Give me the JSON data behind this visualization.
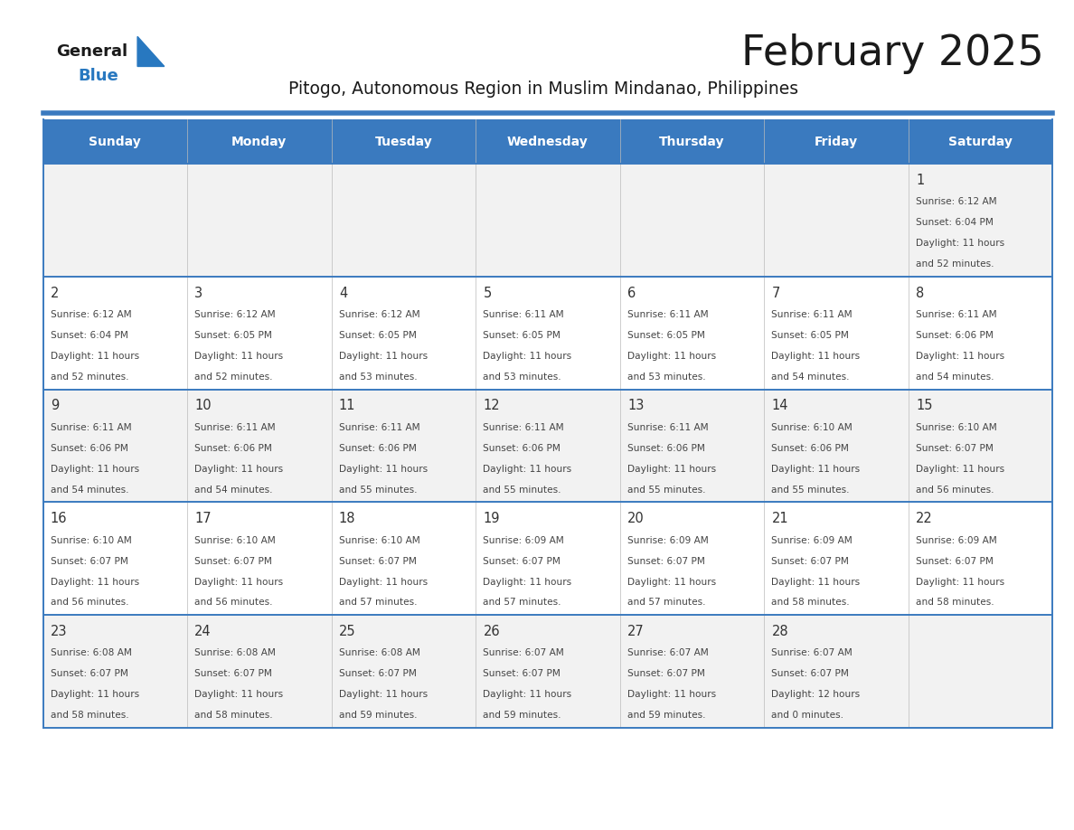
{
  "title": "February 2025",
  "subtitle": "Pitogo, Autonomous Region in Muslim Mindanao, Philippines",
  "days_of_week": [
    "Sunday",
    "Monday",
    "Tuesday",
    "Wednesday",
    "Thursday",
    "Friday",
    "Saturday"
  ],
  "header_bg_color": "#3a7abf",
  "header_text_color": "#ffffff",
  "cell_bg_even": "#f2f2f2",
  "cell_bg_white": "#ffffff",
  "separator_color": "#3a7abf",
  "day_number_color": "#333333",
  "info_text_color": "#444444",
  "title_color": "#1a1a1a",
  "subtitle_color": "#1a1a1a",
  "logo_general_color": "#1a1a1a",
  "logo_blue_color": "#2878c0",
  "calendar_data": [
    [
      null,
      null,
      null,
      null,
      null,
      null,
      {
        "day": 1,
        "sunrise": "6:12 AM",
        "sunset": "6:04 PM",
        "daylight": "11 hours and 52 minutes."
      }
    ],
    [
      {
        "day": 2,
        "sunrise": "6:12 AM",
        "sunset": "6:04 PM",
        "daylight": "11 hours and 52 minutes."
      },
      {
        "day": 3,
        "sunrise": "6:12 AM",
        "sunset": "6:05 PM",
        "daylight": "11 hours and 52 minutes."
      },
      {
        "day": 4,
        "sunrise": "6:12 AM",
        "sunset": "6:05 PM",
        "daylight": "11 hours and 53 minutes."
      },
      {
        "day": 5,
        "sunrise": "6:11 AM",
        "sunset": "6:05 PM",
        "daylight": "11 hours and 53 minutes."
      },
      {
        "day": 6,
        "sunrise": "6:11 AM",
        "sunset": "6:05 PM",
        "daylight": "11 hours and 53 minutes."
      },
      {
        "day": 7,
        "sunrise": "6:11 AM",
        "sunset": "6:05 PM",
        "daylight": "11 hours and 54 minutes."
      },
      {
        "day": 8,
        "sunrise": "6:11 AM",
        "sunset": "6:06 PM",
        "daylight": "11 hours and 54 minutes."
      }
    ],
    [
      {
        "day": 9,
        "sunrise": "6:11 AM",
        "sunset": "6:06 PM",
        "daylight": "11 hours and 54 minutes."
      },
      {
        "day": 10,
        "sunrise": "6:11 AM",
        "sunset": "6:06 PM",
        "daylight": "11 hours and 54 minutes."
      },
      {
        "day": 11,
        "sunrise": "6:11 AM",
        "sunset": "6:06 PM",
        "daylight": "11 hours and 55 minutes."
      },
      {
        "day": 12,
        "sunrise": "6:11 AM",
        "sunset": "6:06 PM",
        "daylight": "11 hours and 55 minutes."
      },
      {
        "day": 13,
        "sunrise": "6:11 AM",
        "sunset": "6:06 PM",
        "daylight": "11 hours and 55 minutes."
      },
      {
        "day": 14,
        "sunrise": "6:10 AM",
        "sunset": "6:06 PM",
        "daylight": "11 hours and 55 minutes."
      },
      {
        "day": 15,
        "sunrise": "6:10 AM",
        "sunset": "6:07 PM",
        "daylight": "11 hours and 56 minutes."
      }
    ],
    [
      {
        "day": 16,
        "sunrise": "6:10 AM",
        "sunset": "6:07 PM",
        "daylight": "11 hours and 56 minutes."
      },
      {
        "day": 17,
        "sunrise": "6:10 AM",
        "sunset": "6:07 PM",
        "daylight": "11 hours and 56 minutes."
      },
      {
        "day": 18,
        "sunrise": "6:10 AM",
        "sunset": "6:07 PM",
        "daylight": "11 hours and 57 minutes."
      },
      {
        "day": 19,
        "sunrise": "6:09 AM",
        "sunset": "6:07 PM",
        "daylight": "11 hours and 57 minutes."
      },
      {
        "day": 20,
        "sunrise": "6:09 AM",
        "sunset": "6:07 PM",
        "daylight": "11 hours and 57 minutes."
      },
      {
        "day": 21,
        "sunrise": "6:09 AM",
        "sunset": "6:07 PM",
        "daylight": "11 hours and 58 minutes."
      },
      {
        "day": 22,
        "sunrise": "6:09 AM",
        "sunset": "6:07 PM",
        "daylight": "11 hours and 58 minutes."
      }
    ],
    [
      {
        "day": 23,
        "sunrise": "6:08 AM",
        "sunset": "6:07 PM",
        "daylight": "11 hours and 58 minutes."
      },
      {
        "day": 24,
        "sunrise": "6:08 AM",
        "sunset": "6:07 PM",
        "daylight": "11 hours and 58 minutes."
      },
      {
        "day": 25,
        "sunrise": "6:08 AM",
        "sunset": "6:07 PM",
        "daylight": "11 hours and 59 minutes."
      },
      {
        "day": 26,
        "sunrise": "6:07 AM",
        "sunset": "6:07 PM",
        "daylight": "11 hours and 59 minutes."
      },
      {
        "day": 27,
        "sunrise": "6:07 AM",
        "sunset": "6:07 PM",
        "daylight": "11 hours and 59 minutes."
      },
      {
        "day": 28,
        "sunrise": "6:07 AM",
        "sunset": "6:07 PM",
        "daylight": "12 hours and 0 minutes."
      },
      null
    ]
  ]
}
